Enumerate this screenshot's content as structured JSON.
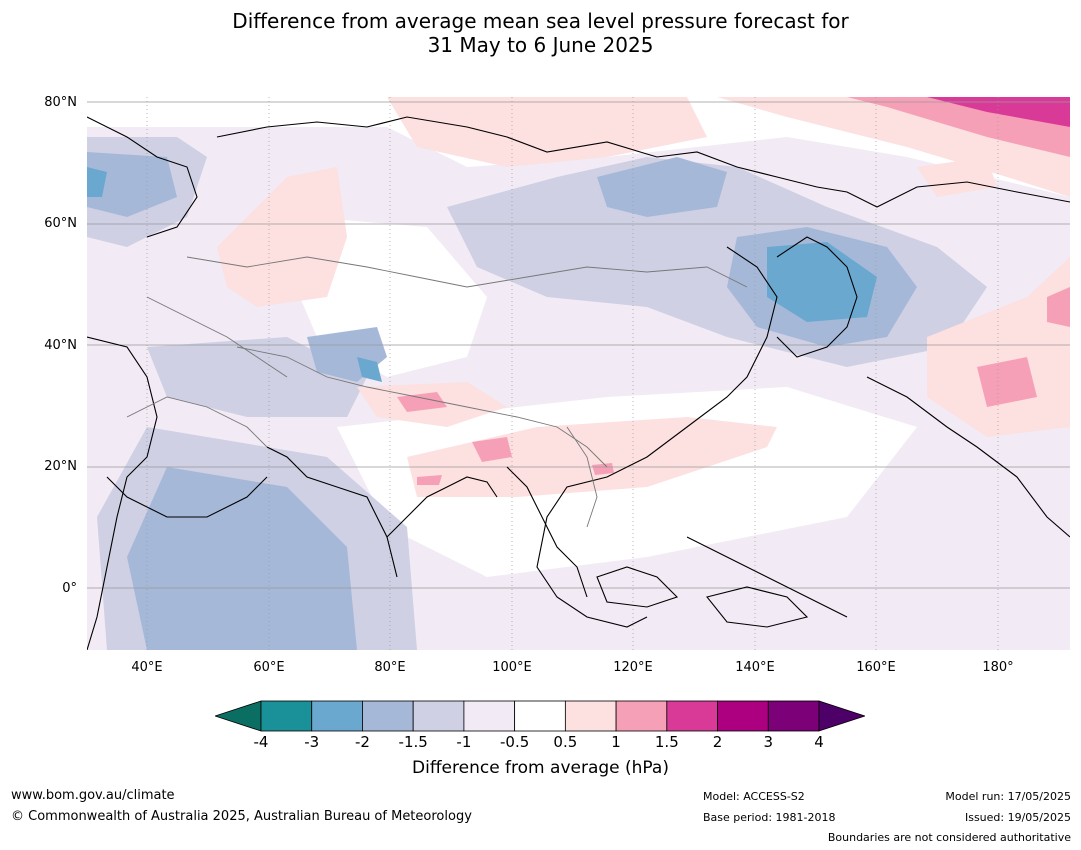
{
  "title": {
    "line1": "Difference from average mean sea level pressure forecast for",
    "line2": "31 May to 6 June 2025"
  },
  "lat_labels": [
    "80°N",
    "60°N",
    "40°N",
    "20°N",
    "0°"
  ],
  "lon_labels": [
    "40°E",
    "60°E",
    "80°E",
    "100°E",
    "120°E",
    "140°E",
    "160°E",
    "180°"
  ],
  "colorbar": {
    "label": "Difference from average (hPa)",
    "ticks": [
      "-4",
      "-3",
      "-2",
      "-1.5",
      "-1",
      "-0.5",
      "0.5",
      "1",
      "1.5",
      "2",
      "3",
      "4"
    ],
    "colors": [
      "#1a9098",
      "#6aa8d0",
      "#a6b8d8",
      "#cfd0e4",
      "#f2eaf4",
      "#ffffff",
      "#fde0e0",
      "#f6a0b8",
      "#d93a98",
      "#ac0080",
      "#7c0078"
    ],
    "extend_low_color": "#0a6e62",
    "extend_high_color": "#4c0068"
  },
  "footer": {
    "website": "www.bom.gov.au/climate",
    "copyright": "© Commonwealth of Australia 2025, Australian Bureau of Meteorology",
    "model": "Model: ACCESS-S2",
    "base_period": "Base period: 1981-2018",
    "model_run": "Model run: 17/05/2025",
    "issued": "Issued: 19/05/2025",
    "disclaimer": "Boundaries are not considered authoritative"
  }
}
